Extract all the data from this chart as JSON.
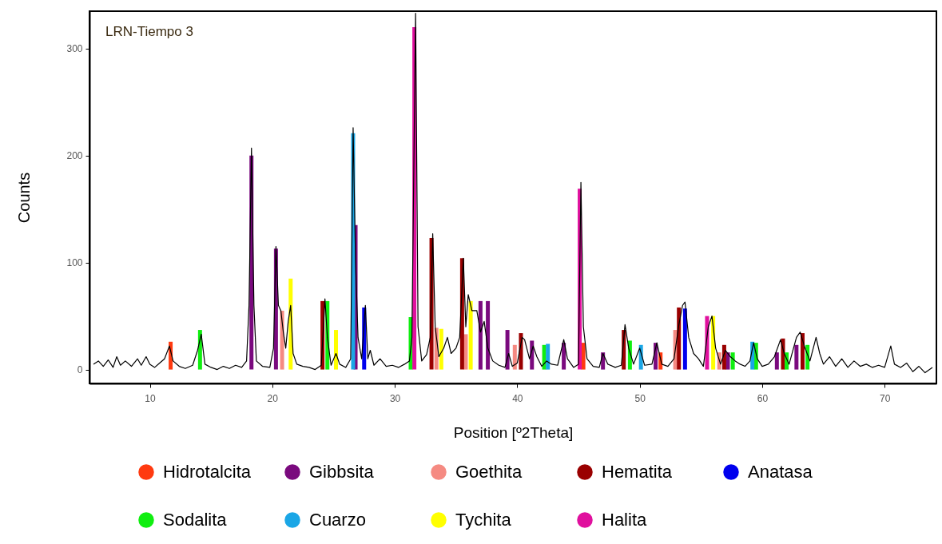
{
  "chart_data": {
    "type": "bar",
    "xlabel": "Position [º2Theta]",
    "ylabel": "Counts",
    "xlim": [
      5.4,
      73.9
    ],
    "ylim": [
      -13,
      335
    ],
    "xticks": [
      10,
      20,
      30,
      40,
      50,
      60,
      70
    ],
    "yticks": [
      0,
      100,
      200,
      300
    ],
    "legend": "bottom",
    "annotations": [
      "LRN-Tiempo 3"
    ],
    "series": [
      {
        "type": "line",
        "color": "#000000",
        "x": [
          5.4,
          5.8,
          6.2,
          6.6,
          7.0,
          7.3,
          7.6,
          8.0,
          8.5,
          9.0,
          9.3,
          9.7,
          10.0,
          10.4,
          10.8,
          11.2,
          11.6,
          11.9,
          12.4,
          12.9,
          13.5,
          13.9,
          14.2,
          14.5,
          15.0,
          15.5,
          16.0,
          16.5,
          17.0,
          17.5,
          17.9,
          18.1,
          18.3,
          18.5,
          18.7,
          19.2,
          19.8,
          20.1,
          20.3,
          20.5,
          20.7,
          20.9,
          21.1,
          21.3,
          21.5,
          21.7,
          22.0,
          22.5,
          23.0,
          23.5,
          24.0,
          24.3,
          24.5,
          24.8,
          25.2,
          25.5,
          26.0,
          26.4,
          26.6,
          26.8,
          27.0,
          27.3,
          27.6,
          27.8,
          28.0,
          28.3,
          28.8,
          29.3,
          29.8,
          30.3,
          30.8,
          31.2,
          31.4,
          31.7,
          31.9,
          32.2,
          32.6,
          32.9,
          33.1,
          33.3,
          33.6,
          34.0,
          34.3,
          34.6,
          35.0,
          35.3,
          35.6,
          35.8,
          36.0,
          36.3,
          36.7,
          37.0,
          37.3,
          37.6,
          38.0,
          38.5,
          39.0,
          39.3,
          39.6,
          40.0,
          40.4,
          40.6,
          41.0,
          41.3,
          41.6,
          42.0,
          42.4,
          42.8,
          43.3,
          43.8,
          44.1,
          44.6,
          45.0,
          45.2,
          45.4,
          45.7,
          46.2,
          46.7,
          47.0,
          47.4,
          48.0,
          48.5,
          48.8,
          49.1,
          49.5,
          50.0,
          50.4,
          51.0,
          51.4,
          51.8,
          52.3,
          52.8,
          53.2,
          53.5,
          53.7,
          54.0,
          54.4,
          54.8,
          55.2,
          55.6,
          55.9,
          56.2,
          56.6,
          57.0,
          57.4,
          57.8,
          58.2,
          58.6,
          59.0,
          59.3,
          59.6,
          60.0,
          60.5,
          61.0,
          61.5,
          61.8,
          62.2,
          62.8,
          63.1,
          63.5,
          63.9,
          64.4,
          64.7,
          65.0,
          65.5,
          66.0,
          66.5,
          67.0,
          67.5,
          68.0,
          68.5,
          69.0,
          69.5,
          70.0,
          70.5,
          70.8,
          71.3,
          71.8,
          72.3,
          72.8,
          73.3,
          73.9
        ],
        "values": [
          5,
          8,
          3,
          9,
          2,
          12,
          4,
          8,
          3,
          10,
          4,
          12,
          5,
          2,
          6,
          10,
          22,
          8,
          3,
          1,
          4,
          18,
          33,
          5,
          2,
          0,
          3,
          1,
          4,
          2,
          8,
          60,
          207,
          60,
          8,
          3,
          2,
          20,
          115,
          60,
          55,
          35,
          20,
          45,
          60,
          15,
          5,
          3,
          2,
          0,
          4,
          66,
          30,
          4,
          15,
          5,
          2,
          10,
          226,
          100,
          30,
          10,
          60,
          10,
          18,
          4,
          10,
          3,
          4,
          2,
          5,
          8,
          30,
          333,
          40,
          8,
          14,
          30,
          127,
          40,
          12,
          20,
          30,
          15,
          20,
          30,
          104,
          40,
          70,
          55,
          55,
          35,
          45,
          20,
          8,
          4,
          2,
          15,
          3,
          6,
          30,
          28,
          10,
          22,
          12,
          3,
          8,
          5,
          4,
          28,
          10,
          2,
          5,
          175,
          40,
          10,
          3,
          2,
          15,
          5,
          2,
          4,
          42,
          20,
          5,
          20,
          4,
          5,
          25,
          5,
          3,
          10,
          42,
          60,
          63,
          30,
          15,
          10,
          3,
          40,
          50,
          20,
          5,
          18,
          12,
          8,
          5,
          3,
          8,
          25,
          10,
          3,
          5,
          12,
          28,
          15,
          5,
          30,
          35,
          20,
          8,
          30,
          15,
          5,
          12,
          3,
          10,
          2,
          8,
          3,
          5,
          2,
          4,
          2,
          22,
          5,
          2,
          6,
          -2,
          3,
          -3,
          2
        ]
      },
      {
        "name": "Hidrotalcita",
        "color": "#ff3a10",
        "x": [
          11.7,
          45.4,
          51.7
        ],
        "values": [
          26,
          25,
          16
        ]
      },
      {
        "name": "Gibbsita",
        "color": "#7a0a7e",
        "x": [
          18.3,
          20.3,
          26.8,
          37.0,
          37.6,
          39.2,
          41.2,
          43.8,
          47.0,
          51.3,
          57.2,
          61.2,
          62.8
        ],
        "values": [
          200,
          113,
          135,
          64,
          64,
          37,
          27,
          25,
          16,
          25,
          16,
          16,
          23
        ]
      },
      {
        "name": "Goethita",
        "color": "#f58a82",
        "x": [
          20.8,
          33.4,
          35.8,
          39.8,
          52.9,
          56.5
        ],
        "values": [
          55,
          39,
          33,
          23,
          37,
          16
        ]
      },
      {
        "name": "Hematita",
        "color": "#9a0000",
        "x": [
          24.1,
          33.0,
          35.5,
          40.3,
          48.7,
          53.2,
          56.9,
          61.7,
          63.3
        ],
        "values": [
          64,
          123,
          104,
          34,
          37,
          58,
          23,
          29,
          34
        ]
      },
      {
        "name": "Anatasa",
        "color": "#0000ee",
        "x": [
          27.5,
          53.7
        ],
        "values": [
          58,
          57
        ]
      },
      {
        "name": "Sodalita",
        "color": "#10ee10",
        "x": [
          14.1,
          24.5,
          31.3,
          42.2,
          49.2,
          57.6,
          59.5,
          62.0,
          63.7
        ],
        "values": [
          37,
          64,
          49,
          23,
          27,
          16,
          25,
          16,
          23
        ]
      },
      {
        "name": "Cuarzo",
        "color": "#1aa6e6",
        "x": [
          26.6,
          42.5,
          50.1,
          59.2
        ],
        "values": [
          221,
          24,
          23,
          26
        ]
      },
      {
        "name": "Tychita",
        "color": "#ffff00",
        "x": [
          21.5,
          25.2,
          33.8,
          36.2,
          56.0
        ],
        "values": [
          85,
          37,
          38,
          64,
          50
        ]
      },
      {
        "name": "Halita",
        "color": "#e0109e",
        "x": [
          31.6,
          45.1,
          55.5
        ],
        "values": [
          320,
          169,
          50
        ]
      }
    ]
  }
}
